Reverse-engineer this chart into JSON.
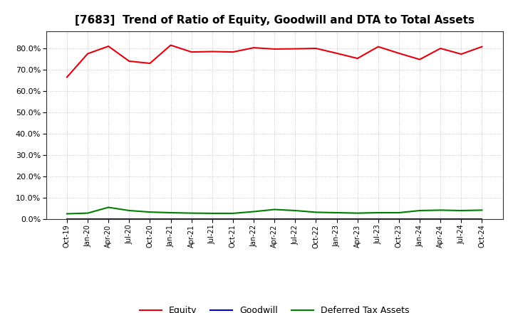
{
  "title": "[7683]  Trend of Ratio of Equity, Goodwill and DTA to Total Assets",
  "title_fontsize": 11,
  "background_color": "#ffffff",
  "plot_bg_color": "#ffffff",
  "grid_color": "#aaaaaa",
  "ylim": [
    0.0,
    0.88
  ],
  "yticks": [
    0.0,
    0.1,
    0.2,
    0.3,
    0.4,
    0.5,
    0.6,
    0.7,
    0.8
  ],
  "x_labels": [
    "Oct-19",
    "Jan-20",
    "Apr-20",
    "Jul-20",
    "Oct-20",
    "Jan-21",
    "Apr-21",
    "Jul-21",
    "Oct-21",
    "Jan-22",
    "Apr-22",
    "Jul-22",
    "Oct-22",
    "Jan-23",
    "Apr-23",
    "Jul-23",
    "Oct-23",
    "Jan-24",
    "Apr-24",
    "Jul-24",
    "Oct-24"
  ],
  "equity": [
    0.665,
    0.775,
    0.81,
    0.74,
    0.73,
    0.815,
    0.783,
    0.785,
    0.783,
    0.803,
    0.797,
    0.798,
    0.8,
    0.777,
    0.753,
    0.808,
    0.777,
    0.748,
    0.8,
    0.773,
    0.808
  ],
  "goodwill": [
    0.0,
    0.0,
    0.0,
    0.0,
    0.0,
    0.0,
    0.0,
    0.0,
    0.0,
    0.0,
    0.0,
    0.0,
    0.0,
    0.0,
    0.0,
    0.0,
    0.0,
    0.0,
    0.0,
    0.0,
    0.0
  ],
  "dta": [
    0.025,
    0.028,
    0.055,
    0.04,
    0.033,
    0.03,
    0.028,
    0.027,
    0.027,
    0.035,
    0.045,
    0.04,
    0.032,
    0.03,
    0.028,
    0.03,
    0.03,
    0.04,
    0.042,
    0.04,
    0.042
  ],
  "equity_color": "#e8000d",
  "goodwill_color": "#0000cc",
  "dta_color": "#008000",
  "line_width": 1.5,
  "legend_equity": "Equity",
  "legend_goodwill": "Goodwill",
  "legend_dta": "Deferred Tax Assets"
}
